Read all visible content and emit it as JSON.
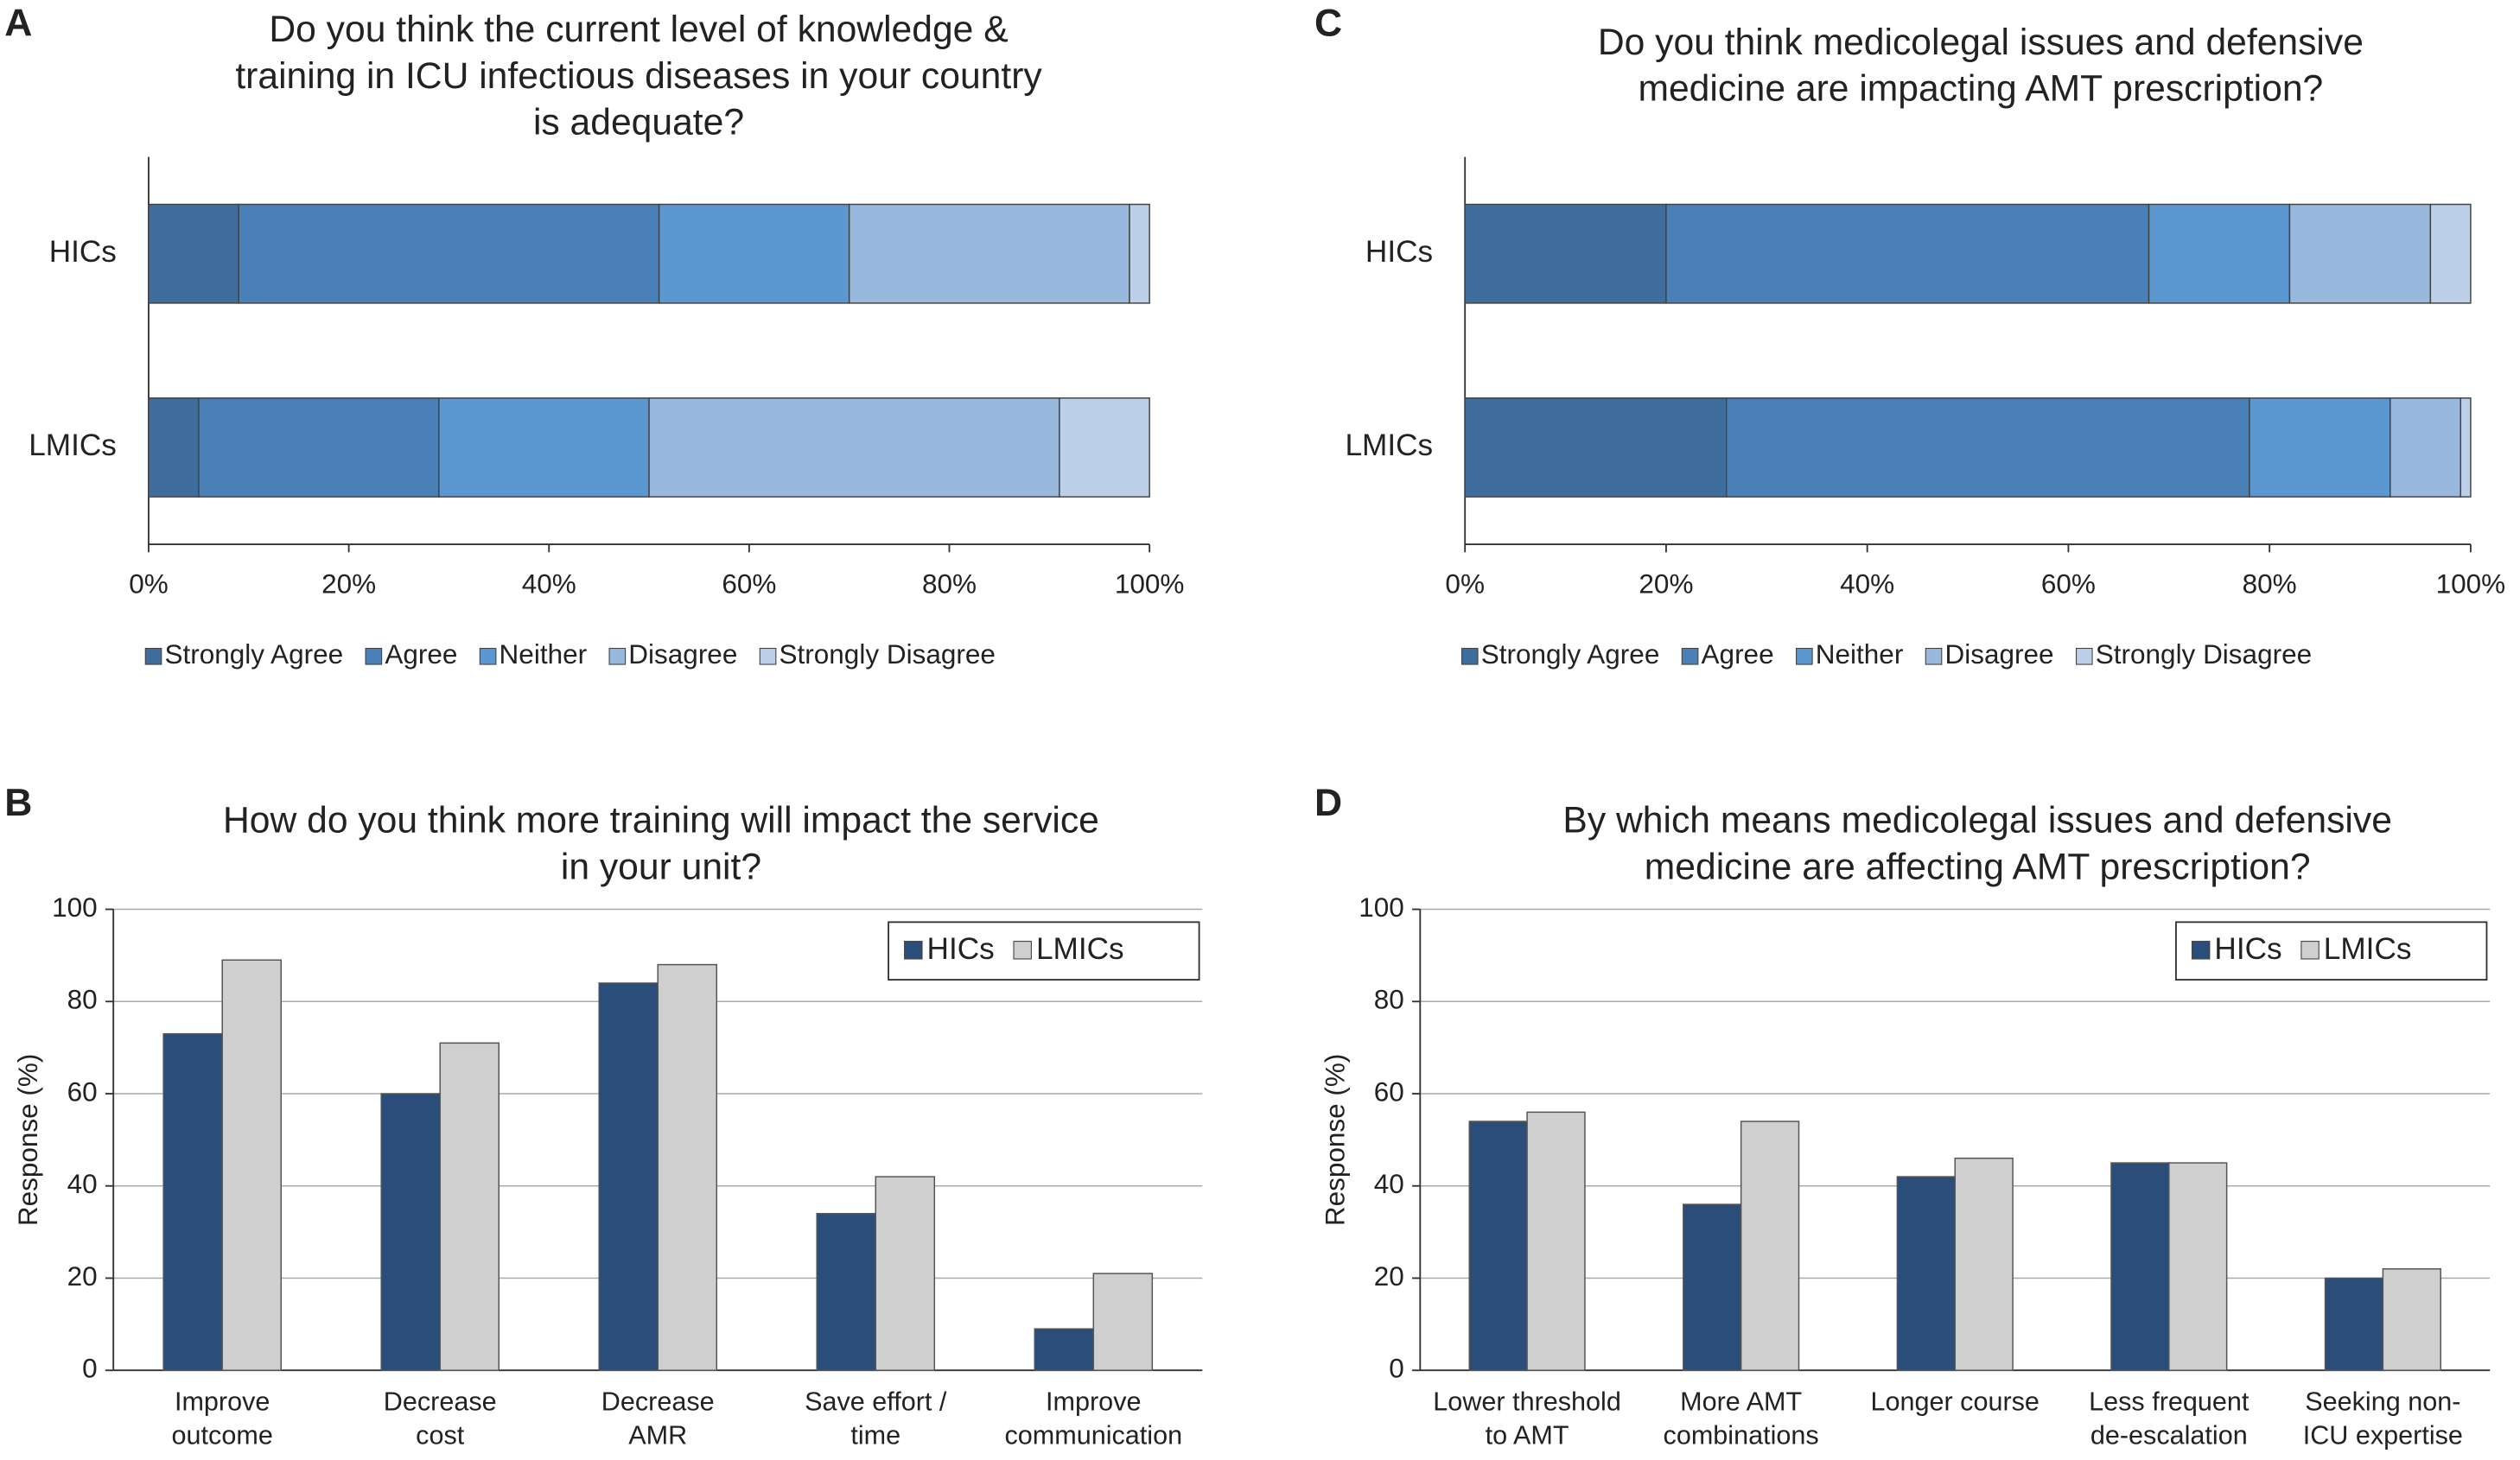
{
  "chart_data": [
    {
      "type": "stacked-bar",
      "panel": "A",
      "title": "Do you think the current level of knowledge &\ntraining in ICU infectious diseases in your country\nis adequate?",
      "categories": [
        "HICs",
        "LMICs"
      ],
      "series": [
        {
          "name": "Strongly Agree",
          "color": "#3f6e9e",
          "values": [
            9,
            5
          ]
        },
        {
          "name": "Agree",
          "color": "#4a80b8",
          "values": [
            42,
            24
          ]
        },
        {
          "name": "Neither",
          "color": "#5b97d0",
          "values": [
            19,
            21
          ]
        },
        {
          "name": "Disagree",
          "color": "#98b8dd",
          "values": [
            28,
            41
          ]
        },
        {
          "name": "Strongly Disagree",
          "color": "#bdd0ea",
          "values": [
            2,
            9
          ]
        }
      ],
      "xlim": [
        0,
        100
      ],
      "xticks": [
        {
          "value": 0,
          "label": "0%"
        },
        {
          "value": 20,
          "label": "20%"
        },
        {
          "value": 40,
          "label": "40%"
        },
        {
          "value": 60,
          "label": "60%"
        },
        {
          "value": 80,
          "label": "80%"
        },
        {
          "value": 100,
          "label": "100%"
        }
      ],
      "legend": "bottom",
      "grid": false
    },
    {
      "type": "bar",
      "panel": "B",
      "title": "How do you think more training will impact the service\nin your unit?",
      "categories": [
        "Improve\noutcome",
        "Decrease\ncost",
        "Decrease\nAMR",
        "Save effort /\ntime",
        "Improve\ncommunication"
      ],
      "series": [
        {
          "name": "HICs",
          "color": "#2a4d7a",
          "values": [
            73,
            60,
            84,
            34,
            9
          ]
        },
        {
          "name": "LMICs",
          "color": "#cfcfcf",
          "values": [
            89,
            71,
            88,
            42,
            21
          ]
        }
      ],
      "y_label": "Response (%)",
      "ylim": [
        0,
        100
      ],
      "yticks": [
        0,
        20,
        40,
        60,
        80,
        100
      ],
      "legend": "upper right",
      "grid": true
    },
    {
      "type": "stacked-bar",
      "panel": "C",
      "title": "Do you think medicolegal issues and defensive\nmedicine are impacting AMT prescription?",
      "categories": [
        "HICs",
        "LMICs"
      ],
      "series": [
        {
          "name": "Strongly Agree",
          "color": "#3f6e9e",
          "values": [
            20,
            26
          ]
        },
        {
          "name": "Agree",
          "color": "#4a80b8",
          "values": [
            48,
            52
          ]
        },
        {
          "name": "Neither",
          "color": "#5b97d0",
          "values": [
            14,
            14
          ]
        },
        {
          "name": "Disagree",
          "color": "#98b8dd",
          "values": [
            14,
            7
          ]
        },
        {
          "name": "Strongly Disagree",
          "color": "#bdd0ea",
          "values": [
            4,
            1
          ]
        }
      ],
      "xlim": [
        0,
        100
      ],
      "xticks": [
        {
          "value": 0,
          "label": "0%"
        },
        {
          "value": 20,
          "label": "20%"
        },
        {
          "value": 40,
          "label": "40%"
        },
        {
          "value": 60,
          "label": "60%"
        },
        {
          "value": 80,
          "label": "80%"
        },
        {
          "value": 100,
          "label": "100%"
        }
      ],
      "legend": "bottom",
      "grid": false
    },
    {
      "type": "bar",
      "panel": "D",
      "title": "By which means medicolegal issues and defensive\nmedicine are affecting AMT prescription?",
      "categories": [
        "Lower threshold\nto AMT",
        "More AMT\ncombinations",
        "Longer course",
        "Less frequent\nde-escalation",
        "Seeking non-\nICU expertise"
      ],
      "series": [
        {
          "name": "HICs",
          "color": "#2a4d7a",
          "values": [
            54,
            36,
            42,
            45,
            20
          ]
        },
        {
          "name": "LMICs",
          "color": "#cfcfcf",
          "values": [
            56,
            54,
            46,
            45,
            22
          ]
        }
      ],
      "y_label": "Response (%)",
      "ylim": [
        0,
        100
      ],
      "yticks": [
        0,
        20,
        40,
        60,
        80,
        100
      ],
      "legend": "upper right",
      "grid": true
    }
  ]
}
